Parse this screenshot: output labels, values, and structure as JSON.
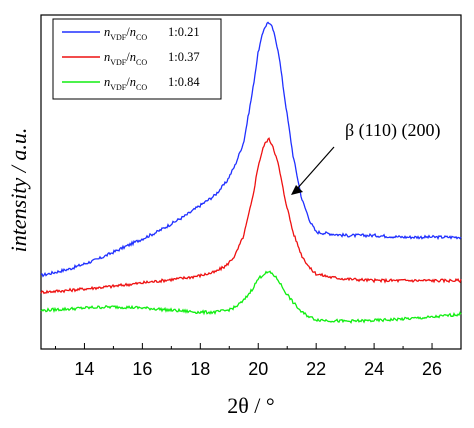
{
  "chart_data": {
    "type": "line",
    "xlabel": "2θ / °",
    "ylabel": "intensity / a.u.",
    "xlim": [
      12.5,
      27.0
    ],
    "ylim": [
      0,
      100
    ],
    "x_ticks": [
      14,
      16,
      18,
      20,
      22,
      24,
      26
    ],
    "y_ticks_shown": false,
    "grid": false,
    "legend": {
      "placement": "top-left",
      "entries": [
        {
          "ratio_label": "1:0.21",
          "color": "#2030ff"
        },
        {
          "ratio_label": "1:0.37",
          "color": "#ee1111"
        },
        {
          "ratio_label": "1:0.84",
          "color": "#11ee11"
        }
      ]
    },
    "legend_prefix": {
      "n1": "n",
      "sub1": "VDF",
      "sep": "/",
      "n2": "n",
      "sub2": "CO"
    },
    "annotation": {
      "text": "β (110) (200)",
      "points_to": [
        21.0,
        52
      ]
    },
    "series": [
      {
        "color": "#2030ff",
        "x": [
          12.5,
          13.0,
          13.5,
          14.0,
          14.5,
          15.0,
          15.5,
          16.0,
          16.5,
          17.0,
          17.5,
          18.0,
          18.5,
          18.9,
          19.2,
          19.5,
          19.8,
          20.0,
          20.2,
          20.35,
          20.5,
          20.7,
          20.9,
          21.2,
          21.5,
          21.8,
          22.0,
          22.5,
          23.0,
          24.0,
          25.0,
          26.0,
          27.0
        ],
        "y": [
          22,
          23,
          24,
          25.5,
          27,
          29,
          31,
          33,
          35,
          37.5,
          40,
          43,
          46,
          50,
          55,
          62,
          77,
          89,
          96,
          98,
          96,
          89,
          76,
          58,
          45,
          38,
          35,
          34.5,
          34,
          34,
          33.5,
          33.5,
          33.5
        ]
      },
      {
        "color": "#ee1111",
        "x": [
          12.5,
          13.0,
          13.5,
          14.0,
          14.5,
          15.0,
          15.5,
          16.0,
          16.5,
          17.0,
          17.5,
          18.0,
          18.5,
          18.9,
          19.2,
          19.5,
          19.8,
          20.0,
          20.2,
          20.35,
          20.5,
          20.7,
          20.9,
          21.2,
          21.5,
          21.8,
          22.0,
          22.5,
          23.0,
          24.0,
          25.0,
          26.0,
          27.0
        ],
        "y": [
          17,
          17.3,
          17.6,
          18,
          18.4,
          18.8,
          19.3,
          19.8,
          20.3,
          20.8,
          21.3,
          22,
          23,
          25,
          28,
          34,
          45,
          55,
          61,
          63,
          61,
          55,
          46,
          35,
          28,
          24,
          22.5,
          21.5,
          21,
          20.5,
          20.5,
          20.5,
          20.5
        ]
      },
      {
        "color": "#11ee11",
        "x": [
          12.5,
          13.0,
          13.5,
          14.0,
          14.5,
          15.0,
          15.5,
          16.0,
          16.5,
          17.0,
          17.5,
          18.0,
          18.5,
          18.9,
          19.2,
          19.5,
          19.8,
          20.0,
          20.2,
          20.35,
          20.5,
          20.7,
          20.9,
          21.2,
          21.5,
          21.8,
          22.0,
          22.5,
          23.0,
          24.0,
          25.0,
          26.0,
          27.0
        ],
        "y": [
          11.5,
          11.8,
          12,
          12.3,
          12.5,
          12.6,
          12.5,
          12.3,
          12,
          11.6,
          11.3,
          11,
          11,
          11.5,
          12.5,
          14.5,
          18,
          21,
          22.5,
          23,
          22.5,
          20.5,
          17.5,
          14,
          11,
          9.5,
          8.8,
          8.5,
          8.3,
          8.5,
          9,
          9.5,
          10.5
        ]
      }
    ]
  }
}
